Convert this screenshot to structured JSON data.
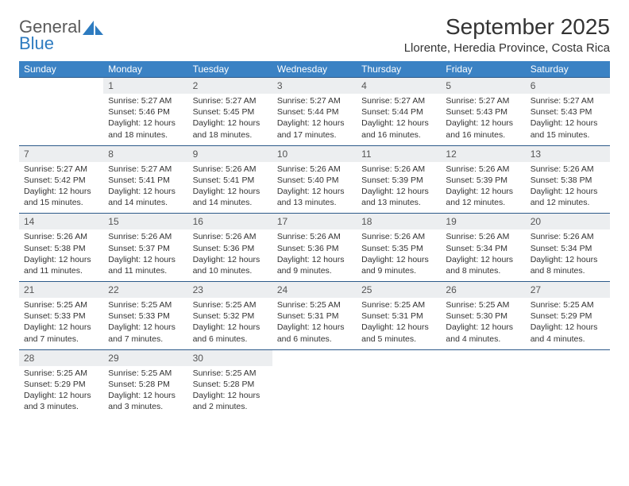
{
  "logo": {
    "word1": "General",
    "word2": "Blue"
  },
  "title": "September 2025",
  "location": "Llorente, Heredia Province, Costa Rica",
  "colors": {
    "header_bg": "#3b82c4",
    "header_text": "#ffffff",
    "daynum_bg": "#eceef0",
    "rule": "#2d5a8a",
    "logo_gray": "#5a5a5a",
    "logo_blue": "#2d7bc0"
  },
  "day_headers": [
    "Sunday",
    "Monday",
    "Tuesday",
    "Wednesday",
    "Thursday",
    "Friday",
    "Saturday"
  ],
  "weeks": [
    {
      "nums": [
        "",
        "1",
        "2",
        "3",
        "4",
        "5",
        "6"
      ],
      "cells": [
        null,
        {
          "sunrise": "5:27 AM",
          "sunset": "5:46 PM",
          "daylight": "12 hours and 18 minutes."
        },
        {
          "sunrise": "5:27 AM",
          "sunset": "5:45 PM",
          "daylight": "12 hours and 18 minutes."
        },
        {
          "sunrise": "5:27 AM",
          "sunset": "5:44 PM",
          "daylight": "12 hours and 17 minutes."
        },
        {
          "sunrise": "5:27 AM",
          "sunset": "5:44 PM",
          "daylight": "12 hours and 16 minutes."
        },
        {
          "sunrise": "5:27 AM",
          "sunset": "5:43 PM",
          "daylight": "12 hours and 16 minutes."
        },
        {
          "sunrise": "5:27 AM",
          "sunset": "5:43 PM",
          "daylight": "12 hours and 15 minutes."
        }
      ]
    },
    {
      "nums": [
        "7",
        "8",
        "9",
        "10",
        "11",
        "12",
        "13"
      ],
      "cells": [
        {
          "sunrise": "5:27 AM",
          "sunset": "5:42 PM",
          "daylight": "12 hours and 15 minutes."
        },
        {
          "sunrise": "5:27 AM",
          "sunset": "5:41 PM",
          "daylight": "12 hours and 14 minutes."
        },
        {
          "sunrise": "5:26 AM",
          "sunset": "5:41 PM",
          "daylight": "12 hours and 14 minutes."
        },
        {
          "sunrise": "5:26 AM",
          "sunset": "5:40 PM",
          "daylight": "12 hours and 13 minutes."
        },
        {
          "sunrise": "5:26 AM",
          "sunset": "5:39 PM",
          "daylight": "12 hours and 13 minutes."
        },
        {
          "sunrise": "5:26 AM",
          "sunset": "5:39 PM",
          "daylight": "12 hours and 12 minutes."
        },
        {
          "sunrise": "5:26 AM",
          "sunset": "5:38 PM",
          "daylight": "12 hours and 12 minutes."
        }
      ]
    },
    {
      "nums": [
        "14",
        "15",
        "16",
        "17",
        "18",
        "19",
        "20"
      ],
      "cells": [
        {
          "sunrise": "5:26 AM",
          "sunset": "5:38 PM",
          "daylight": "12 hours and 11 minutes."
        },
        {
          "sunrise": "5:26 AM",
          "sunset": "5:37 PM",
          "daylight": "12 hours and 11 minutes."
        },
        {
          "sunrise": "5:26 AM",
          "sunset": "5:36 PM",
          "daylight": "12 hours and 10 minutes."
        },
        {
          "sunrise": "5:26 AM",
          "sunset": "5:36 PM",
          "daylight": "12 hours and 9 minutes."
        },
        {
          "sunrise": "5:26 AM",
          "sunset": "5:35 PM",
          "daylight": "12 hours and 9 minutes."
        },
        {
          "sunrise": "5:26 AM",
          "sunset": "5:34 PM",
          "daylight": "12 hours and 8 minutes."
        },
        {
          "sunrise": "5:26 AM",
          "sunset": "5:34 PM",
          "daylight": "12 hours and 8 minutes."
        }
      ]
    },
    {
      "nums": [
        "21",
        "22",
        "23",
        "24",
        "25",
        "26",
        "27"
      ],
      "cells": [
        {
          "sunrise": "5:25 AM",
          "sunset": "5:33 PM",
          "daylight": "12 hours and 7 minutes."
        },
        {
          "sunrise": "5:25 AM",
          "sunset": "5:33 PM",
          "daylight": "12 hours and 7 minutes."
        },
        {
          "sunrise": "5:25 AM",
          "sunset": "5:32 PM",
          "daylight": "12 hours and 6 minutes."
        },
        {
          "sunrise": "5:25 AM",
          "sunset": "5:31 PM",
          "daylight": "12 hours and 6 minutes."
        },
        {
          "sunrise": "5:25 AM",
          "sunset": "5:31 PM",
          "daylight": "12 hours and 5 minutes."
        },
        {
          "sunrise": "5:25 AM",
          "sunset": "5:30 PM",
          "daylight": "12 hours and 4 minutes."
        },
        {
          "sunrise": "5:25 AM",
          "sunset": "5:29 PM",
          "daylight": "12 hours and 4 minutes."
        }
      ]
    },
    {
      "nums": [
        "28",
        "29",
        "30",
        "",
        "",
        "",
        ""
      ],
      "cells": [
        {
          "sunrise": "5:25 AM",
          "sunset": "5:29 PM",
          "daylight": "12 hours and 3 minutes."
        },
        {
          "sunrise": "5:25 AM",
          "sunset": "5:28 PM",
          "daylight": "12 hours and 3 minutes."
        },
        {
          "sunrise": "5:25 AM",
          "sunset": "5:28 PM",
          "daylight": "12 hours and 2 minutes."
        },
        null,
        null,
        null,
        null
      ]
    }
  ],
  "labels": {
    "sunrise": "Sunrise:",
    "sunset": "Sunset:",
    "daylight": "Daylight:"
  }
}
